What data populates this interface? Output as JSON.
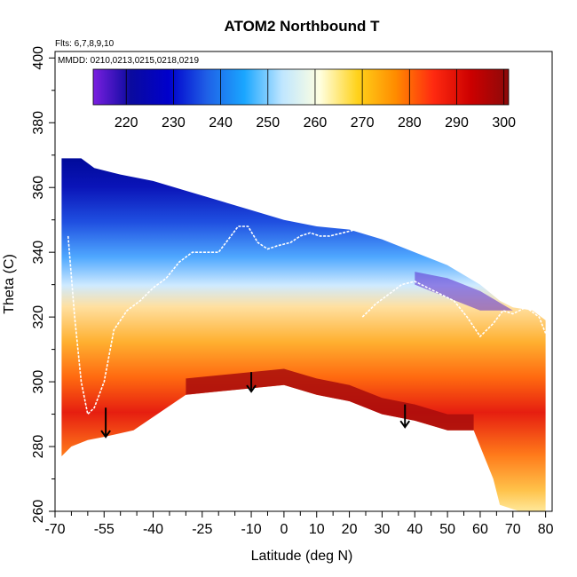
{
  "chart_data": {
    "type": "heatmap",
    "title": "ATOM2 Northbound T",
    "flights_note": "Flts: 6,7,8,9,10",
    "dates_note": "MMDD: 0210,0213,0215,0218,0219",
    "xlabel": "Latitude (deg N)",
    "ylabel": "Theta (C)",
    "xlim": [
      -70,
      82
    ],
    "ylim": [
      260,
      402
    ],
    "x_ticks": [
      -70,
      -55,
      -40,
      -25,
      -10,
      0,
      10,
      20,
      30,
      40,
      50,
      60,
      70,
      80
    ],
    "x_tick_labels": [
      "-70",
      "-55",
      "-40",
      "-25",
      "-10",
      "0",
      "10",
      "20",
      "30",
      "40",
      "50",
      "60",
      "70",
      "80"
    ],
    "x_minor_ticks": [
      -65,
      -60,
      -50,
      -45,
      -35,
      -30,
      -20,
      -15,
      -5,
      5,
      15,
      25,
      35,
      45,
      55,
      65,
      75
    ],
    "y_ticks": [
      260,
      280,
      300,
      320,
      340,
      360,
      380,
      400
    ],
    "y_tick_labels": [
      "260",
      "280",
      "300",
      "320",
      "340",
      "360",
      "380",
      "400"
    ],
    "colorbar": {
      "range": [
        213,
        301
      ],
      "ticks": [
        220,
        230,
        240,
        250,
        260,
        270,
        280,
        290,
        300
      ],
      "tick_labels": [
        "220",
        "230",
        "240",
        "250",
        "260",
        "270",
        "280",
        "290",
        "300"
      ],
      "colors": [
        "#7a1fe0",
        "#0a0a9e",
        "#0000cc",
        "#1f5fe6",
        "#1aa6ff",
        "#bfe6ff",
        "#ffffe0",
        "#ffd21a",
        "#ff8c00",
        "#ff2a10",
        "#cc0000",
        "#8b0a0a"
      ]
    },
    "domain": {
      "top": [
        [
          -68,
          369
        ],
        [
          -62,
          369
        ],
        [
          -58,
          366
        ],
        [
          -50,
          364
        ],
        [
          -40,
          362
        ],
        [
          -30,
          359
        ],
        [
          -20,
          356
        ],
        [
          -10,
          353
        ],
        [
          0,
          350
        ],
        [
          10,
          348
        ],
        [
          20,
          347
        ],
        [
          30,
          344
        ],
        [
          40,
          340
        ],
        [
          50,
          336
        ],
        [
          60,
          330
        ],
        [
          66,
          325
        ],
        [
          70,
          323
        ],
        [
          76,
          322
        ],
        [
          80,
          319
        ]
      ],
      "bottom": [
        [
          80,
          260
        ],
        [
          72,
          260
        ],
        [
          66,
          262
        ],
        [
          64,
          270
        ],
        [
          58,
          285
        ],
        [
          50,
          285
        ],
        [
          40,
          288
        ],
        [
          30,
          290
        ],
        [
          20,
          294
        ],
        [
          10,
          296
        ],
        [
          0,
          299
        ],
        [
          -10,
          298
        ],
        [
          -20,
          297
        ],
        [
          -30,
          296
        ],
        [
          -46,
          285
        ],
        [
          -55,
          283
        ],
        [
          -60,
          282
        ],
        [
          -65,
          280
        ],
        [
          -68,
          277
        ]
      ]
    },
    "isolines": [
      {
        "name": "tropopause-profile-left",
        "values": [
          [
            -66,
            345
          ],
          [
            -64,
            320
          ],
          [
            -62,
            300
          ],
          [
            -60,
            290
          ],
          [
            -58,
            292
          ],
          [
            -55,
            300
          ],
          [
            -52,
            316
          ],
          [
            -48,
            322
          ],
          [
            -44,
            325
          ],
          [
            -40,
            329
          ],
          [
            -36,
            332
          ],
          [
            -32,
            337
          ],
          [
            -28,
            340
          ],
          [
            -24,
            340
          ],
          [
            -20,
            340
          ],
          [
            -17,
            344
          ],
          [
            -14,
            348
          ],
          [
            -11,
            348
          ],
          [
            -8,
            343
          ],
          [
            -5,
            341
          ],
          [
            -2,
            342
          ],
          [
            2,
            343
          ],
          [
            5,
            345
          ],
          [
            8,
            346
          ],
          [
            11,
            345
          ],
          [
            14,
            345
          ],
          [
            18,
            346
          ],
          [
            22,
            347
          ]
        ]
      },
      {
        "name": "tropopause-profile-right",
        "values": [
          [
            24,
            320
          ],
          [
            28,
            324
          ],
          [
            32,
            327
          ],
          [
            36,
            330
          ],
          [
            40,
            331
          ],
          [
            44,
            329
          ],
          [
            48,
            327
          ],
          [
            52,
            325
          ],
          [
            56,
            320
          ],
          [
            60,
            314
          ],
          [
            64,
            318
          ],
          [
            67,
            322
          ],
          [
            70,
            321
          ],
          [
            74,
            323
          ],
          [
            78,
            320
          ],
          [
            80,
            315
          ]
        ]
      }
    ],
    "arrows": [
      {
        "x": -54.5,
        "y_top": 292,
        "y_bottom": 283
      },
      {
        "x": -10,
        "y_top": 303,
        "y_bottom": 297
      },
      {
        "x": 37,
        "y_top": 293,
        "y_bottom": 286
      }
    ]
  }
}
